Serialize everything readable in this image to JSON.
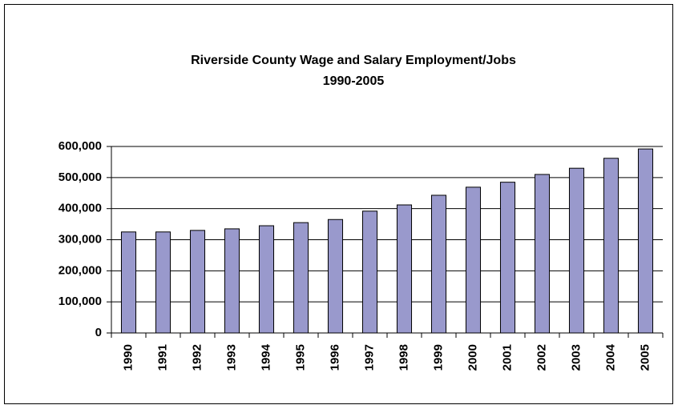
{
  "chart_data": {
    "type": "bar",
    "title": "Riverside County Wage and Salary Employment/Jobs",
    "subtitle": "1990-2005",
    "categories": [
      "1990",
      "1991",
      "1992",
      "1993",
      "1994",
      "1995",
      "1996",
      "1997",
      "1998",
      "1999",
      "2000",
      "2001",
      "2002",
      "2003",
      "2004",
      "2005"
    ],
    "values": [
      325000,
      325000,
      330000,
      335000,
      345000,
      355000,
      365000,
      392000,
      412000,
      443000,
      469000,
      485000,
      510000,
      530000,
      562000,
      592000
    ],
    "color": "#9999cc",
    "ylim": [
      0,
      600000
    ],
    "yticks": [
      0,
      {
        "value": 100000,
        "label": "100,000"
      },
      {
        "value": 200000,
        "label": "200,000"
      },
      {
        "value": 300000,
        "label": "300,000"
      },
      {
        "value": 400000,
        "label": "400,000"
      },
      {
        "value": 500000,
        "label": "500,000"
      },
      {
        "value": 600000,
        "label": "600,000"
      }
    ],
    "grid": true
  }
}
